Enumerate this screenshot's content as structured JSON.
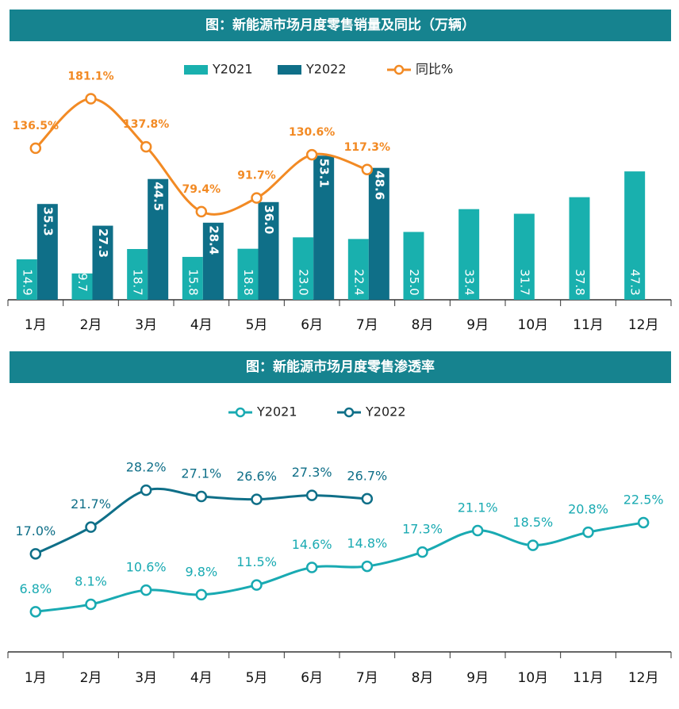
{
  "chart_data": [
    {
      "type": "bar",
      "title": "图：新能源市场月度零售销量及同比（万辆）",
      "categories": [
        "1月",
        "2月",
        "3月",
        "4月",
        "5月",
        "6月",
        "7月",
        "8月",
        "9月",
        "10月",
        "11月",
        "12月"
      ],
      "ylim": [
        0,
        90
      ],
      "y2lim": [
        0,
        220
      ],
      "series": [
        {
          "name": "Y2021",
          "color": "#19b0ae",
          "values": [
            14.9,
            9.7,
            18.7,
            15.8,
            18.8,
            23.0,
            22.4,
            25.0,
            33.4,
            31.7,
            37.8,
            47.3
          ],
          "value_labels": [
            "14.9",
            "9.7",
            "18.7",
            "15.8",
            "18.8",
            "23.0",
            "22.4",
            "25.0",
            "33.4",
            "31.7",
            "37.8",
            "47.3"
          ]
        },
        {
          "name": "Y2022",
          "color": "#0f6f88",
          "values": [
            35.3,
            27.3,
            44.5,
            28.4,
            36.0,
            53.1,
            48.6,
            null,
            null,
            null,
            null,
            null
          ],
          "value_labels": [
            "35.3",
            "27.3",
            "44.5",
            "28.4",
            "36.0",
            "53.1",
            "48.6",
            null,
            null,
            null,
            null,
            null
          ]
        },
        {
          "name": "同比%",
          "type": "line",
          "axis": "y2",
          "color": "#f28a24",
          "values": [
            136.5,
            181.1,
            137.8,
            79.4,
            91.7,
            130.6,
            117.3,
            null,
            null,
            null,
            null,
            null
          ],
          "value_labels": [
            "136.5%",
            "181.1%",
            "137.8%",
            "79.4%",
            "91.7%",
            "130.6%",
            "117.3%",
            null,
            null,
            null,
            null,
            null
          ]
        }
      ]
    },
    {
      "type": "line",
      "title": "图：新能源市场月度零售渗透率",
      "categories": [
        "1月",
        "2月",
        "3月",
        "4月",
        "5月",
        "6月",
        "7月",
        "8月",
        "9月",
        "10月",
        "11月",
        "12月"
      ],
      "ylim": [
        0,
        38
      ],
      "series": [
        {
          "name": "Y2021",
          "color": "#19aab2",
          "values": [
            6.8,
            8.1,
            10.6,
            9.8,
            11.5,
            14.6,
            14.8,
            17.3,
            21.1,
            18.5,
            20.8,
            22.5
          ],
          "value_labels": [
            "6.8%",
            "8.1%",
            "10.6%",
            "9.8%",
            "11.5%",
            "14.6%",
            "14.8%",
            "17.3%",
            "21.1%",
            "18.5%",
            "20.8%",
            "22.5%"
          ]
        },
        {
          "name": "Y2022",
          "color": "#0f6f88",
          "values": [
            17.0,
            21.7,
            28.2,
            27.1,
            26.6,
            27.3,
            26.7,
            null,
            null,
            null,
            null,
            null
          ],
          "value_labels": [
            "17.0%",
            "21.7%",
            "28.2%",
            "27.1%",
            "26.6%",
            "27.3%",
            "26.7%",
            null,
            null,
            null,
            null,
            null
          ]
        }
      ]
    }
  ]
}
